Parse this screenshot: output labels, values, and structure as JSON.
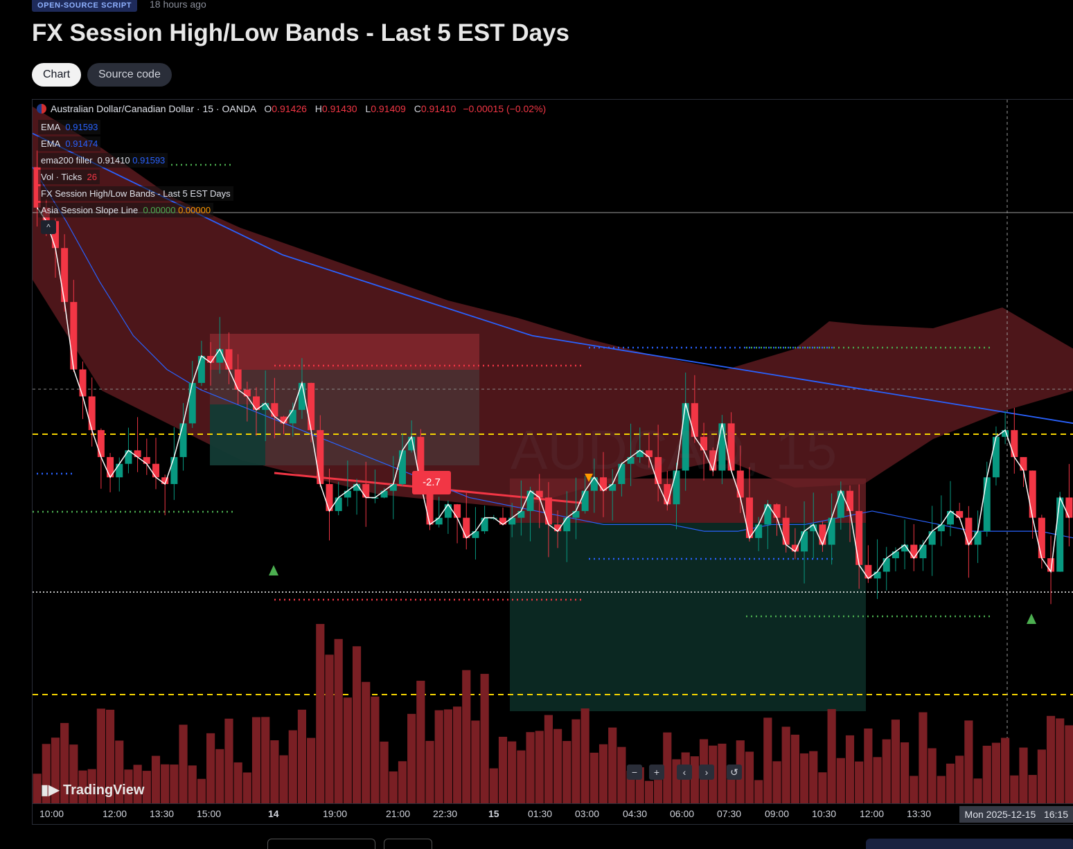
{
  "header": {
    "badge": "OPEN-SOURCE SCRIPT",
    "time_ago": "18 hours ago",
    "title": "FX Session High/Low Bands - Last 5 EST Days"
  },
  "tabs": [
    {
      "label": "Chart",
      "active": true
    },
    {
      "label": "Source code",
      "active": false
    }
  ],
  "symbol": {
    "name": "Australian Dollar/Canadian Dollar",
    "interval": "15",
    "exchange": "OANDA",
    "o_label": "O",
    "o": "0.91426",
    "h_label": "H",
    "h": "0.91430",
    "l_label": "L",
    "l": "0.91409",
    "c_label": "C",
    "c": "0.91410",
    "change": "−0.00015 (−0.02%)"
  },
  "legend": {
    "ema1_name": "EMA",
    "ema1_value": "0.91593",
    "ema2_name": "EMA",
    "ema2_value": "0.91474",
    "filler_name": "ema200 filler",
    "filler_v1": "0.91410",
    "filler_v2": "0.91593",
    "vol_name": "Vol · Ticks",
    "vol_value": "26",
    "bands_name": "FX Session High/Low Bands - Last 5 EST Days",
    "slope_name": "Asia Session Slope Line",
    "slope_v1": "0.00000",
    "slope_v2": "0.00000"
  },
  "watermark": "AUDCAD, 15",
  "slope_label": "-2.7",
  "logo": "TradingView",
  "nav_buttons": [
    "−",
    "+",
    "‹",
    "›",
    "↺"
  ],
  "time_axis": {
    "ticks": [
      "10:00",
      "12:00",
      "13:30",
      "15:00",
      "14",
      "19:00",
      "21:00",
      "22:30",
      "15",
      "01:30",
      "03:00",
      "04:30",
      "06:00",
      "07:30",
      "09:00",
      "10:30",
      "12:00",
      "13:30"
    ],
    "bold_ticks": [
      "14",
      "15"
    ],
    "cursor_date": "Mon 2025-12-15",
    "cursor_time": "16:15"
  },
  "colors": {
    "up": "#089981",
    "down": "#f23645",
    "ema_blue": "#2962ff",
    "band_fill": "#5a1a1e",
    "vol_bar": "#7a1f24",
    "asia_green": "#0f3b34"
  },
  "chart_data": {
    "type": "candlestick",
    "ohlc_close_series": [
      0.9174,
      0.9172,
      0.9168,
      0.916,
      0.915,
      0.9146,
      0.9141,
      0.9137,
      0.9134,
      0.9136,
      0.9138,
      0.9137,
      0.9136,
      0.9134,
      0.9133,
      0.9137,
      0.9142,
      0.9148,
      0.9152,
      0.9151,
      0.9153,
      0.915,
      0.9147,
      0.9146,
      0.9144,
      0.9145,
      0.9143,
      0.9142,
      0.9144,
      0.9148,
      0.9141,
      0.9133,
      0.9129,
      0.9131,
      0.9132,
      0.9133,
      0.9131,
      0.9131,
      0.9132,
      0.9133,
      0.9138,
      0.914,
      0.9133,
      0.9127,
      0.9128,
      0.913,
      0.9128,
      0.9125,
      0.9126,
      0.9128,
      0.9128,
      0.9127,
      0.9128,
      0.9129,
      0.9132,
      0.9131,
      0.9127,
      0.9126,
      0.9128,
      0.9129,
      0.9132,
      0.9134,
      0.9132,
      0.9133,
      0.9136,
      0.9137,
      0.9138,
      0.9137,
      0.9133,
      0.913,
      0.9135,
      0.9145,
      0.914,
      0.9138,
      0.9135,
      0.9142,
      0.9135,
      0.9131,
      0.9125,
      0.9127,
      0.913,
      0.9128,
      0.9124,
      0.9123,
      0.9126,
      0.9127,
      0.9124,
      0.9128,
      0.9132,
      0.9129,
      0.9121,
      0.9119,
      0.912,
      0.9122,
      0.9123,
      0.9124,
      0.9122,
      0.9124,
      0.9126,
      0.9127,
      0.9129,
      0.9128,
      0.9124,
      0.9126,
      0.9134,
      0.914,
      0.9141,
      0.9137,
      0.9135,
      0.9128,
      0.9122,
      0.912,
      0.9131,
      0.9128
    ],
    "ema_fast": [
      0.918,
      0.9172,
      0.9163,
      0.9155,
      0.915,
      0.9147,
      0.9145,
      0.9143,
      0.9141,
      0.9139,
      0.9137,
      0.9135,
      0.9133,
      0.9131,
      0.913,
      0.9129,
      0.9128,
      0.9127,
      0.9127,
      0.9127,
      0.9126,
      0.9126,
      0.9127,
      0.9127,
      0.9128,
      0.9129,
      0.9128,
      0.9127,
      0.9126,
      0.9126,
      0.9126,
      0.9125
    ],
    "ema_slow": [
      0.9185,
      0.9182,
      0.9179,
      0.9176,
      0.9173,
      0.917,
      0.9167,
      0.9165,
      0.9163,
      0.9161,
      0.9159,
      0.9157,
      0.9155,
      0.9154,
      0.9153,
      0.9152,
      0.9151,
      0.915,
      0.9149,
      0.9148,
      0.9147,
      0.9146,
      0.9145,
      0.9144,
      0.9143,
      0.9142
    ]
  }
}
